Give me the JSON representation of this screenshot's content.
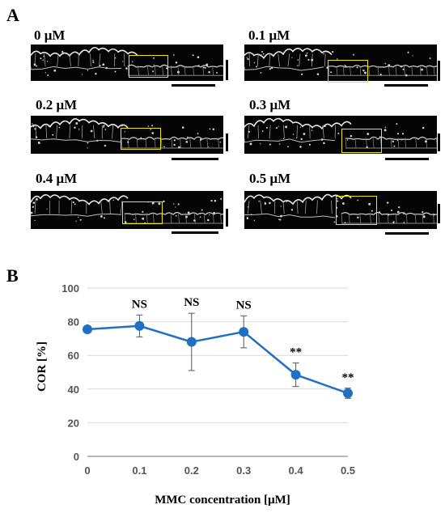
{
  "panels": {
    "a": "A",
    "b": "B"
  },
  "micrographs": [
    {
      "label": "0 μM"
    },
    {
      "label": "0.1 μM"
    },
    {
      "label": "0.2 μM"
    },
    {
      "label": "0.3 μM"
    },
    {
      "label": "0.4 μM"
    },
    {
      "label": "0.5 μM"
    }
  ],
  "colors": {
    "series": "#1f6fc4",
    "roi": "#f2e600",
    "grid": "#d9d9d9",
    "axis": "#8c8c8c"
  },
  "chart_data": {
    "type": "line",
    "xlabel": "MMC concentration [μM]",
    "ylabel": "COR [%]",
    "ylim": [
      0,
      100
    ],
    "yticks": [
      0,
      20,
      40,
      60,
      80,
      100
    ],
    "x": [
      0,
      0.1,
      0.2,
      0.3,
      0.4,
      0.5
    ],
    "xtick_labels": [
      "0",
      "0.1",
      "0.2",
      "0.3",
      "0.4",
      "0.5"
    ],
    "grid": true,
    "series": [
      {
        "values": [
          75.5,
          77.5,
          68,
          74,
          48.5,
          37.5
        ],
        "error": [
          null,
          6.5,
          17,
          9.5,
          7,
          3
        ],
        "annotations": [
          "",
          "NS",
          "NS",
          "NS",
          "**",
          "**"
        ]
      }
    ]
  }
}
